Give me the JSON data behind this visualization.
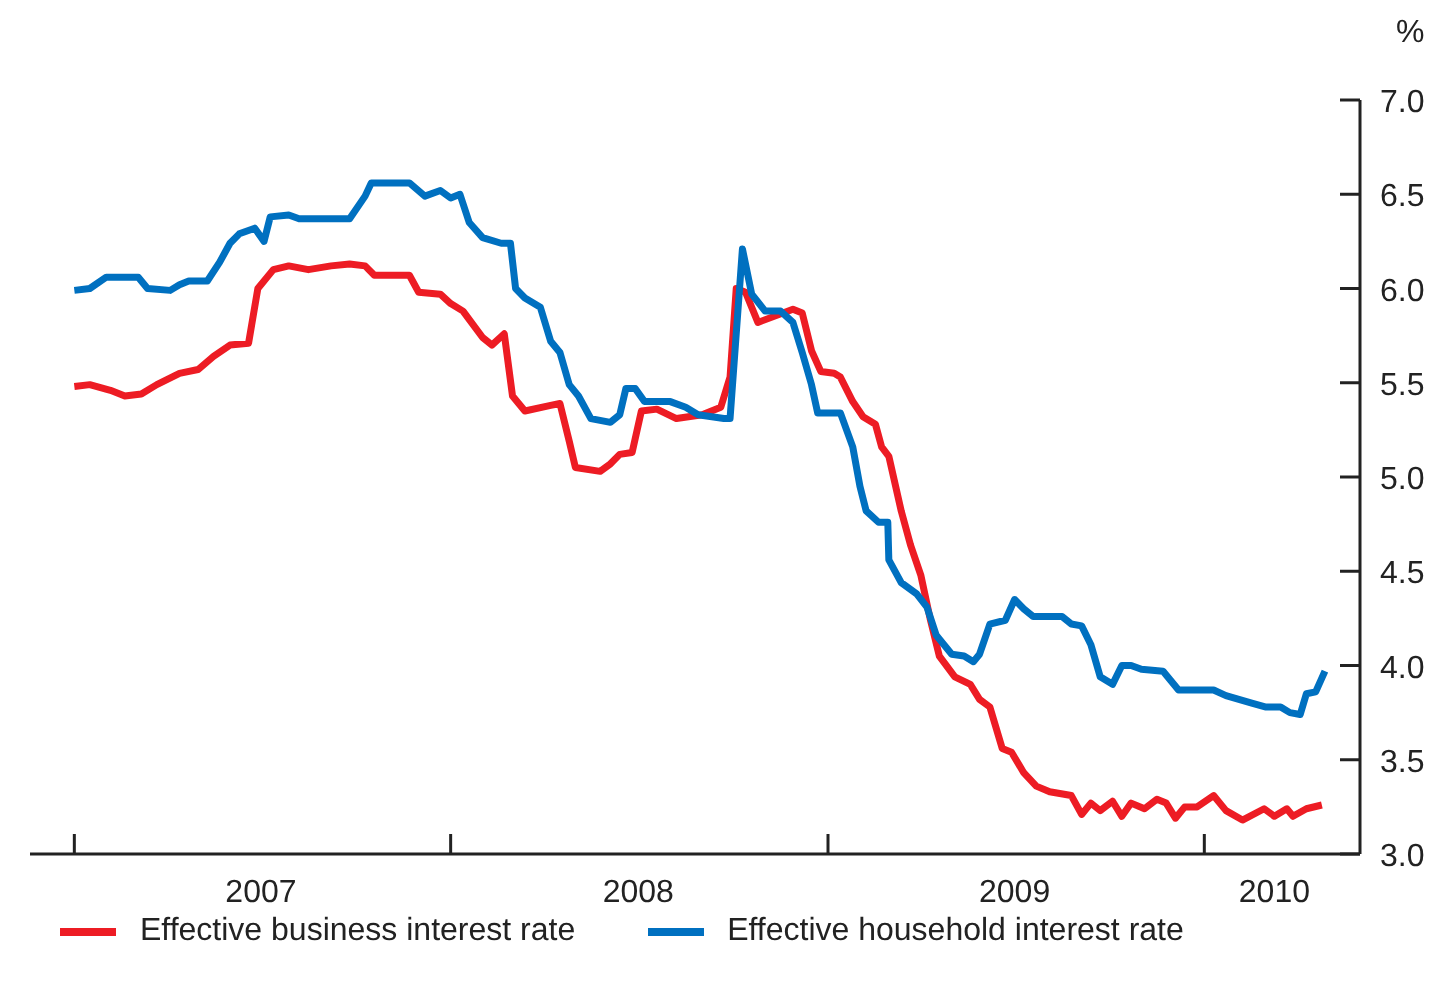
{
  "chart_data": {
    "type": "line",
    "ylabel": "%",
    "legend": "bottom",
    "xlim": [
      "2006-11-19",
      "2010-06-01"
    ],
    "xticks": [
      {
        "value": "2007-01-01",
        "label": null
      },
      {
        "value": "2007-07-01",
        "label": "2007"
      },
      {
        "value": "2008-01-01",
        "label": null
      },
      {
        "value": "2008-07-01",
        "label": "2008"
      },
      {
        "value": "2009-01-01",
        "label": null
      },
      {
        "value": "2009-07-01",
        "label": "2009"
      },
      {
        "value": "2010-01-01",
        "label": null
      },
      {
        "value": "2010-03-10",
        "label": "2010"
      }
    ],
    "ylim": [
      3,
      7
    ],
    "yticks": [
      {
        "value": 3,
        "label": "3.0"
      },
      {
        "value": 3.5,
        "label": "3.5"
      },
      {
        "value": 4,
        "label": "4.0"
      },
      {
        "value": 4.5,
        "label": "4.5"
      },
      {
        "value": 5,
        "label": "5.0"
      },
      {
        "value": 5.5,
        "label": "5.5"
      },
      {
        "value": 6,
        "label": "6.0"
      },
      {
        "value": 6.5,
        "label": "6.5"
      },
      {
        "value": 7,
        "label": "7.0"
      }
    ],
    "series": [
      {
        "name": "Effective business interest rate",
        "color": "#ed1c24",
        "x": [
          "2007-01-01",
          "2007-01-16",
          "2007-02-05",
          "2007-02-19",
          "2007-03-07",
          "2007-03-22",
          "2007-04-13",
          "2007-05-01",
          "2007-05-16",
          "2007-06-01",
          "2007-06-19",
          "2007-06-28",
          "2007-07-13",
          "2007-07-28",
          "2007-08-16",
          "2007-09-07",
          "2007-09-25",
          "2007-10-10",
          "2007-10-19",
          "2007-11-22",
          "2007-12-01",
          "2007-12-22",
          "2008-01-01",
          "2008-01-13",
          "2008-02-01",
          "2008-02-10",
          "2008-02-22",
          "2008-03-01",
          "2008-03-13",
          "2008-04-07",
          "2008-04-16",
          "2008-04-25",
          "2008-05-01",
          "2008-05-25",
          "2008-06-04",
          "2008-06-13",
          "2008-06-25",
          "2008-07-04",
          "2008-07-19",
          "2008-08-07",
          "2008-09-01",
          "2008-09-19",
          "2008-09-28",
          "2008-10-04",
          "2008-10-13",
          "2008-10-25",
          "2008-11-28",
          "2008-12-07",
          "2008-12-16",
          "2008-12-25",
          "2009-01-07",
          "2009-01-13",
          "2009-01-25",
          "2009-02-04",
          "2009-02-16",
          "2009-02-22",
          "2009-03-01",
          "2009-03-13",
          "2009-03-22",
          "2009-04-01",
          "2009-04-10",
          "2009-04-19",
          "2009-05-04",
          "2009-05-19",
          "2009-05-28",
          "2009-06-07",
          "2009-06-19",
          "2009-06-28",
          "2009-07-10",
          "2009-07-22",
          "2009-08-04",
          "2009-08-25",
          "2009-09-04",
          "2009-09-13",
          "2009-09-22",
          "2009-10-04",
          "2009-10-13",
          "2009-10-22",
          "2009-11-04",
          "2009-11-16",
          "2009-11-25",
          "2009-12-04",
          "2009-12-13",
          "2009-12-25",
          "2010-01-10",
          "2010-01-22",
          "2010-02-07",
          "2010-02-28",
          "2010-03-10",
          "2010-03-22",
          "2010-03-28",
          "2010-04-10",
          "2010-04-25"
        ],
        "values": [
          5.48,
          5.49,
          5.46,
          5.43,
          5.44,
          5.49,
          5.55,
          5.57,
          5.64,
          5.7,
          5.71,
          6.0,
          6.1,
          6.12,
          6.1,
          6.12,
          6.13,
          6.12,
          6.07,
          6.07,
          5.98,
          5.97,
          5.92,
          5.88,
          5.74,
          5.7,
          5.76,
          5.43,
          5.35,
          5.38,
          5.39,
          5.19,
          5.05,
          5.03,
          5.07,
          5.12,
          5.13,
          5.35,
          5.36,
          5.31,
          5.33,
          5.37,
          5.53,
          6.0,
          5.98,
          5.82,
          5.89,
          5.87,
          5.67,
          5.56,
          5.55,
          5.53,
          5.4,
          5.32,
          5.28,
          5.16,
          5.11,
          4.82,
          4.64,
          4.48,
          4.25,
          4.05,
          3.94,
          3.9,
          3.82,
          3.78,
          3.56,
          3.54,
          3.43,
          3.36,
          3.33,
          3.31,
          3.21,
          3.27,
          3.23,
          3.28,
          3.2,
          3.27,
          3.24,
          3.29,
          3.27,
          3.19,
          3.25,
          3.25,
          3.31,
          3.23,
          3.18,
          3.24,
          3.2,
          3.24,
          3.2,
          3.24,
          3.26
        ]
      },
      {
        "name": "Effective household interest rate",
        "color": "#0070c0",
        "x": [
          "2007-01-01",
          "2007-01-16",
          "2007-02-01",
          "2007-03-04",
          "2007-03-13",
          "2007-04-04",
          "2007-04-13",
          "2007-04-22",
          "2007-05-10",
          "2007-05-22",
          "2007-06-01",
          "2007-06-10",
          "2007-06-25",
          "2007-07-04",
          "2007-07-10",
          "2007-07-28",
          "2007-08-07",
          "2007-09-25",
          "2007-10-10",
          "2007-10-16",
          "2007-11-22",
          "2007-12-07",
          "2007-12-22",
          "2008-01-01",
          "2008-01-10",
          "2008-01-19",
          "2008-02-01",
          "2008-02-19",
          "2008-02-28",
          "2008-03-04",
          "2008-03-13",
          "2008-03-28",
          "2008-04-07",
          "2008-04-16",
          "2008-04-25",
          "2008-05-04",
          "2008-05-16",
          "2008-06-04",
          "2008-06-13",
          "2008-06-19",
          "2008-06-28",
          "2008-07-07",
          "2008-08-01",
          "2008-08-16",
          "2008-08-28",
          "2008-09-22",
          "2008-09-28",
          "2008-10-10",
          "2008-10-19",
          "2008-11-01",
          "2008-11-16",
          "2008-11-28",
          "2008-12-07",
          "2008-12-16",
          "2008-12-22",
          "2009-01-13",
          "2009-01-25",
          "2009-02-01",
          "2009-02-07",
          "2009-02-19",
          "2009-02-28",
          "2009-03-01",
          "2009-03-13",
          "2009-03-28",
          "2009-04-07",
          "2009-04-16",
          "2009-05-01",
          "2009-05-13",
          "2009-05-22",
          "2009-05-28",
          "2009-06-07",
          "2009-06-22",
          "2009-07-01",
          "2009-07-10",
          "2009-07-19",
          "2009-08-16",
          "2009-08-25",
          "2009-09-04",
          "2009-09-13",
          "2009-09-22",
          "2009-10-04",
          "2009-10-13",
          "2009-10-22",
          "2009-11-01",
          "2009-11-22",
          "2009-12-07",
          "2010-01-10",
          "2010-01-22",
          "2010-02-16",
          "2010-03-01",
          "2010-03-16",
          "2010-03-25",
          "2010-04-04",
          "2010-04-10",
          "2010-04-19",
          "2010-04-28"
        ],
        "values": [
          5.99,
          6.0,
          6.06,
          6.06,
          6.0,
          5.99,
          6.02,
          6.04,
          6.04,
          6.14,
          6.24,
          6.29,
          6.32,
          6.25,
          6.38,
          6.39,
          6.37,
          6.37,
          6.49,
          6.56,
          6.56,
          6.49,
          6.52,
          6.48,
          6.5,
          6.35,
          6.27,
          6.24,
          6.24,
          6.0,
          5.95,
          5.9,
          5.72,
          5.66,
          5.49,
          5.43,
          5.31,
          5.29,
          5.33,
          5.47,
          5.47,
          5.4,
          5.4,
          5.37,
          5.33,
          5.31,
          5.31,
          6.21,
          5.97,
          5.88,
          5.88,
          5.82,
          5.66,
          5.49,
          5.34,
          5.34,
          5.16,
          4.95,
          4.82,
          4.76,
          4.76,
          4.56,
          4.44,
          4.38,
          4.31,
          4.16,
          4.06,
          4.05,
          4.02,
          4.06,
          4.22,
          4.24,
          4.35,
          4.3,
          4.26,
          4.26,
          4.22,
          4.21,
          4.11,
          3.94,
          3.9,
          4.0,
          4.0,
          3.98,
          3.97,
          3.87,
          3.87,
          3.84,
          3.8,
          3.78,
          3.78,
          3.75,
          3.74,
          3.85,
          3.86,
          3.97
        ]
      }
    ]
  }
}
